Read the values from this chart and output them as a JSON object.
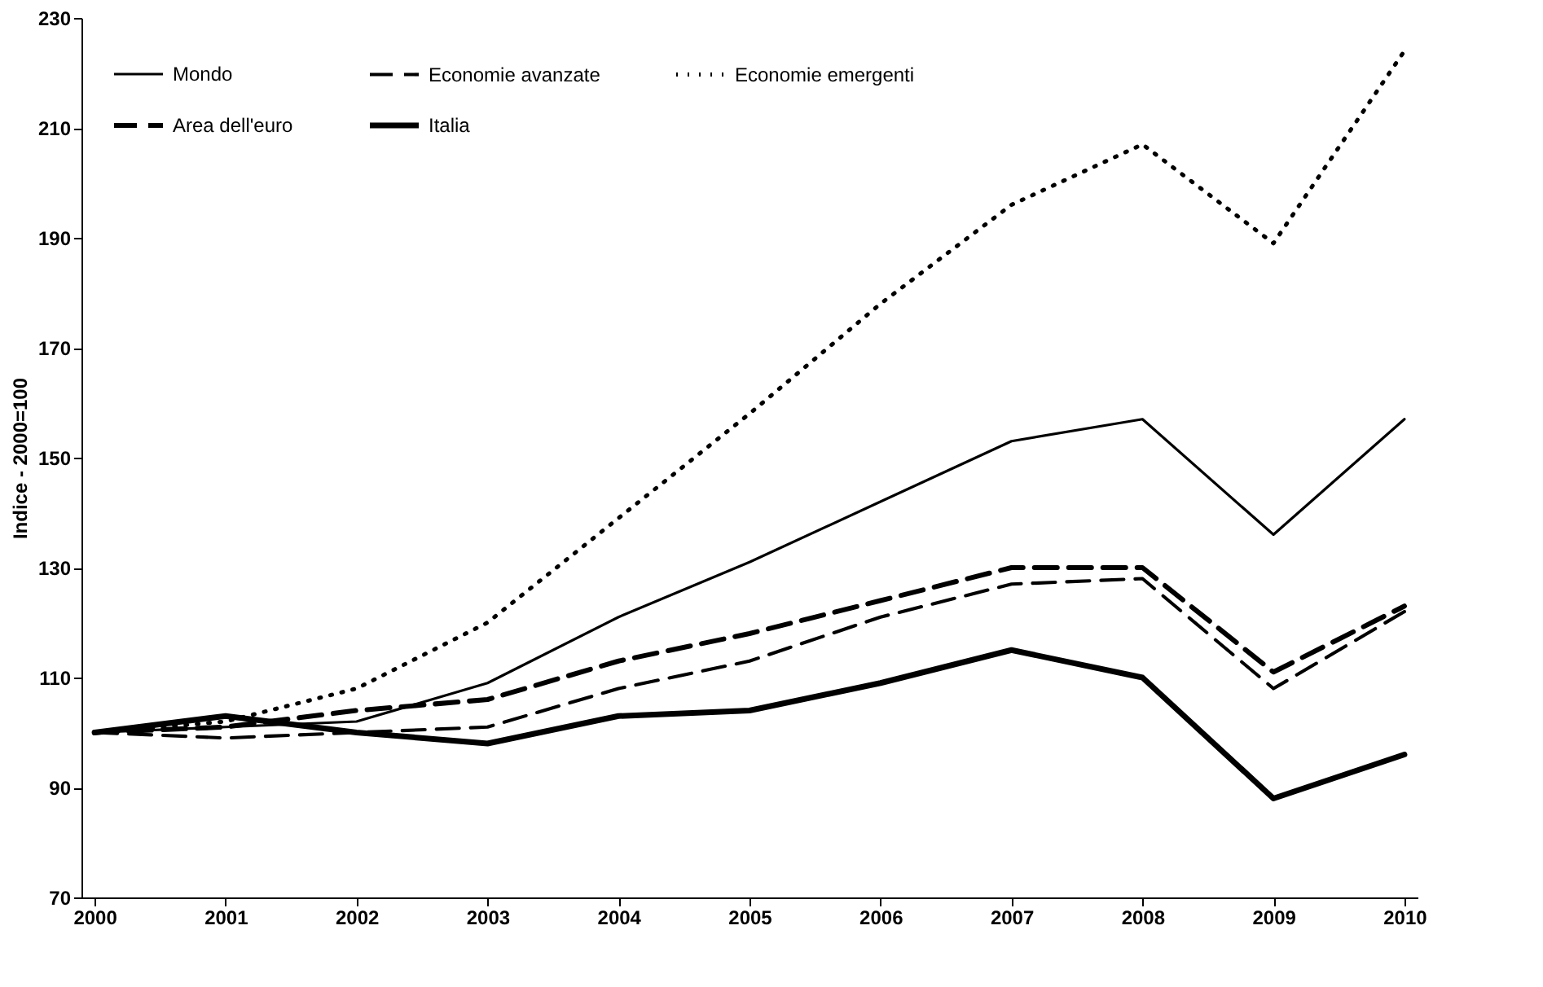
{
  "chart_data": {
    "type": "line",
    "ylabel": "Indice - 2000=100",
    "categories": [
      "2000",
      "2001",
      "2002",
      "2003",
      "2004",
      "2005",
      "2006",
      "2007",
      "2008",
      "2009",
      "2010"
    ],
    "series": [
      {
        "name": "Mondo",
        "color": "#000000",
        "line_style": "solid",
        "values": [
          100,
          101,
          102,
          109,
          121,
          131,
          142,
          153,
          157,
          136,
          157
        ]
      },
      {
        "name": "Economie avanzate",
        "color": "#000000",
        "line_style": "dashed",
        "values": [
          100,
          99,
          100,
          101,
          108,
          113,
          121,
          127,
          128,
          108,
          122
        ]
      },
      {
        "name": "Economie emergenti",
        "color": "#000000",
        "line_style": "dotted",
        "values": [
          100,
          102,
          108,
          120,
          139,
          158,
          178,
          196,
          207,
          189,
          224
        ]
      },
      {
        "name": "Area dell'euro",
        "color": "#000000",
        "line_style": "dashed",
        "values": [
          100,
          101,
          104,
          106,
          113,
          118,
          124,
          130,
          130,
          111,
          123
        ]
      },
      {
        "name": "Italia",
        "color": "#000000",
        "line_style": "solid",
        "values": [
          100,
          103,
          100,
          98,
          103,
          104,
          109,
          115,
          110,
          88,
          96
        ]
      }
    ],
    "ylim": [
      70,
      230
    ],
    "yticks": [
      70,
      90,
      110,
      130,
      150,
      170,
      190,
      210,
      230
    ],
    "grid": false,
    "legend": "top left",
    "marker": "none"
  }
}
